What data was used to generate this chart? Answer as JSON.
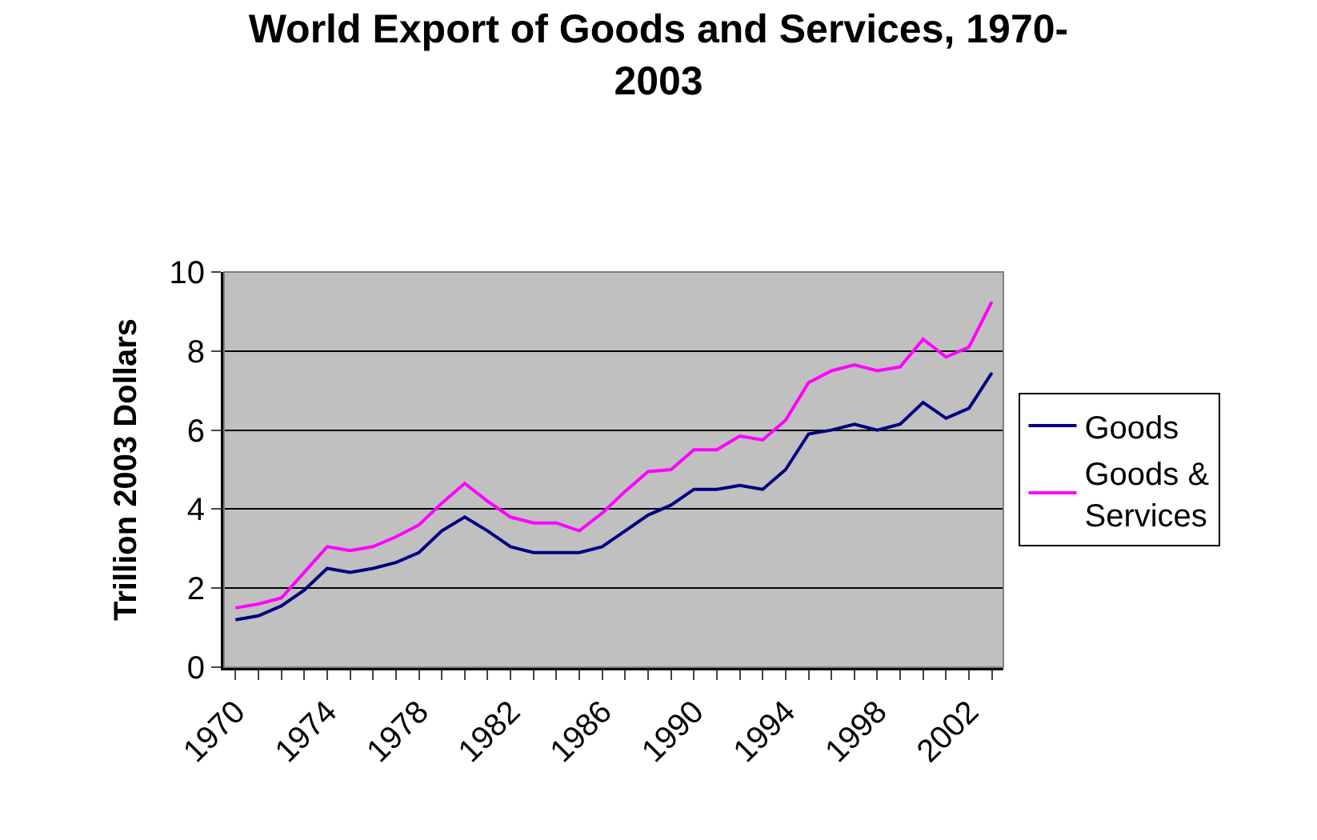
{
  "chart_data": {
    "type": "line",
    "title": "World Export of Goods and Services, 1970-2003",
    "ylabel": "Trillion 2003 Dollars",
    "x": [
      1970,
      1971,
      1972,
      1973,
      1974,
      1975,
      1976,
      1977,
      1978,
      1979,
      1980,
      1981,
      1982,
      1983,
      1984,
      1985,
      1986,
      1987,
      1988,
      1989,
      1990,
      1991,
      1992,
      1993,
      1994,
      1995,
      1996,
      1997,
      1998,
      1999,
      2000,
      2001,
      2002,
      2003
    ],
    "series": [
      {
        "name": "Goods",
        "color": "#000080",
        "values": [
          1.2,
          1.3,
          1.55,
          1.95,
          2.5,
          2.4,
          2.5,
          2.65,
          2.9,
          3.45,
          3.8,
          3.45,
          3.05,
          2.9,
          2.9,
          2.9,
          3.05,
          3.45,
          3.85,
          4.1,
          4.5,
          4.5,
          4.6,
          4.5,
          5.0,
          5.9,
          6.0,
          6.15,
          6.0,
          6.15,
          6.7,
          6.3,
          6.55,
          7.45
        ]
      },
      {
        "name": "Goods & Services",
        "color": "#ff00ff",
        "values": [
          1.5,
          1.6,
          1.75,
          2.4,
          3.05,
          2.95,
          3.05,
          3.3,
          3.6,
          4.15,
          4.65,
          4.2,
          3.8,
          3.65,
          3.65,
          3.45,
          3.9,
          4.45,
          4.95,
          5.0,
          5.5,
          5.5,
          5.85,
          5.75,
          6.25,
          7.2,
          7.5,
          7.65,
          7.5,
          7.6,
          8.3,
          7.85,
          8.1,
          9.25
        ]
      }
    ],
    "xlim": [
      1969.5,
      2003.5
    ],
    "xticks": [
      1970,
      {
        "value": 1971,
        "label": null
      },
      {
        "value": 1972,
        "label": null
      },
      {
        "value": 1973,
        "label": null
      },
      1974,
      {
        "value": 1975,
        "label": null
      },
      {
        "value": 1976,
        "label": null
      },
      {
        "value": 1977,
        "label": null
      },
      1978,
      {
        "value": 1979,
        "label": null
      },
      {
        "value": 1980,
        "label": null
      },
      {
        "value": 1981,
        "label": null
      },
      1982,
      {
        "value": 1983,
        "label": null
      },
      {
        "value": 1984,
        "label": null
      },
      {
        "value": 1985,
        "label": null
      },
      1986,
      {
        "value": 1987,
        "label": null
      },
      {
        "value": 1988,
        "label": null
      },
      {
        "value": 1989,
        "label": null
      },
      1990,
      {
        "value": 1991,
        "label": null
      },
      {
        "value": 1992,
        "label": null
      },
      {
        "value": 1993,
        "label": null
      },
      1994,
      {
        "value": 1995,
        "label": null
      },
      {
        "value": 1996,
        "label": null
      },
      {
        "value": 1997,
        "label": null
      },
      1998,
      {
        "value": 1999,
        "label": null
      },
      {
        "value": 2000,
        "label": null
      },
      {
        "value": 2001,
        "label": null
      },
      2002,
      {
        "value": 2003,
        "label": null
      }
    ],
    "ylim": [
      0,
      10
    ],
    "yticks": [
      0,
      2,
      4,
      6,
      8,
      10
    ],
    "grid": "y",
    "legend": "right",
    "marker": "none",
    "line_style": "solid"
  }
}
